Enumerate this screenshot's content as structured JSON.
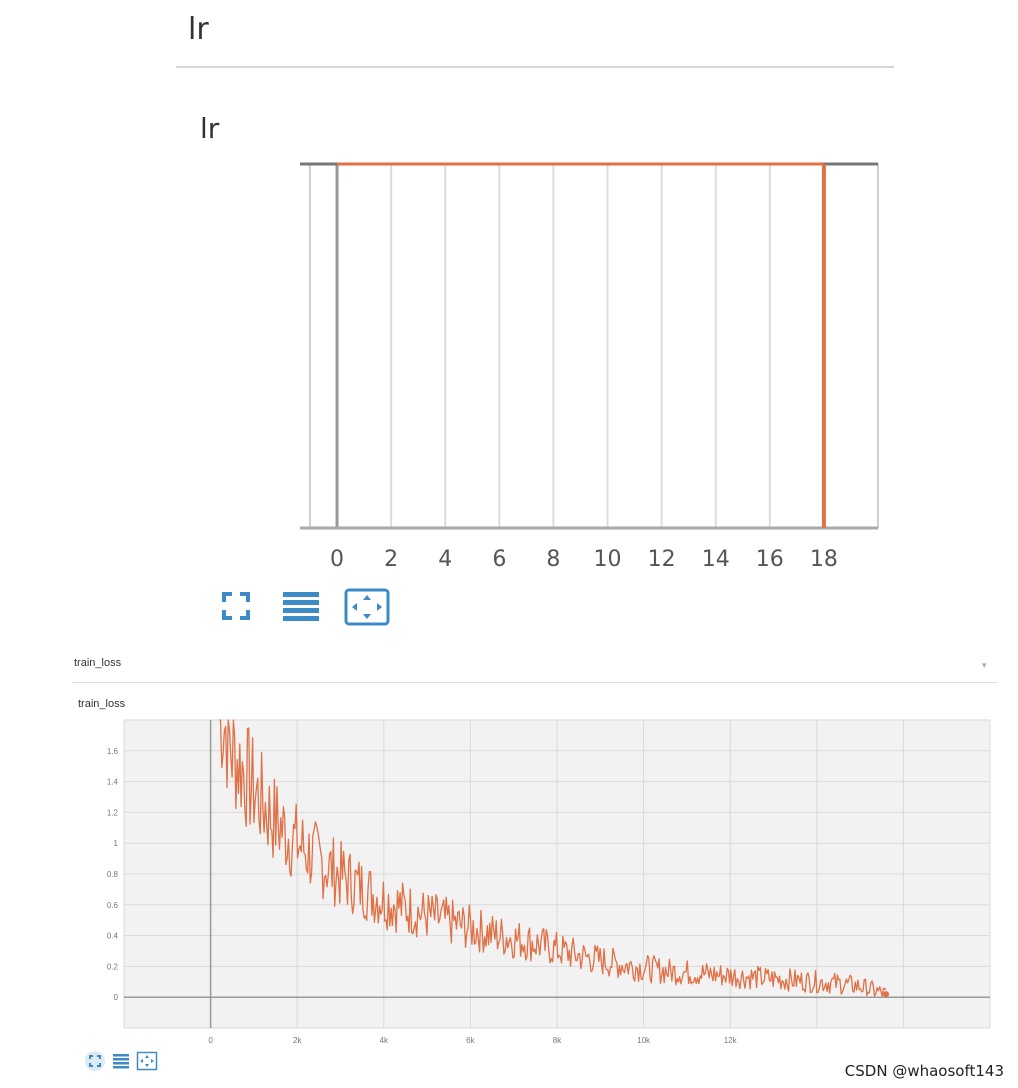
{
  "section1": {
    "header_title": "lr",
    "card_title": "lr"
  },
  "section2": {
    "header_title": "train_loss",
    "card_title": "train_loss",
    "collapse_glyph": "▾"
  },
  "toolbar_icons": [
    "expand-icon",
    "data-table-icon",
    "fit-domain-icon"
  ],
  "watermark": "CSDN @whaosoft143",
  "colors": {
    "series": "#e07045",
    "zero_line": "#999999",
    "grid": "#d9d9d9",
    "toolbar_icon": "#3d8bc6",
    "plot_bg": "#f2f2f2"
  },
  "chart_data": [
    {
      "type": "line",
      "title": "lr",
      "x": {
        "ticks": [
          0,
          2,
          4,
          6,
          8,
          10,
          12,
          14,
          16,
          18
        ],
        "range": [
          -1,
          20
        ]
      },
      "y": {
        "ticks": [],
        "range": [
          0,
          1
        ]
      },
      "series": [
        {
          "x": [
            0,
            18
          ],
          "y": [
            1,
            1
          ]
        }
      ],
      "grid": true,
      "legend": "none"
    },
    {
      "type": "line",
      "title": "train_loss",
      "x": {
        "tick_labels": [
          "0",
          "2k",
          "4k",
          "6k",
          "8k",
          "10k",
          "12k"
        ],
        "tick_values": [
          0,
          2000,
          4000,
          6000,
          8000,
          10000,
          12000
        ],
        "range": [
          -2000,
          18000
        ]
      },
      "y": {
        "tick_labels": [
          "0",
          "0.2",
          "0.4",
          "0.6",
          "0.8",
          "1",
          "1.2",
          "1.4",
          "1.6"
        ],
        "tick_values": [
          0,
          0.2,
          0.4,
          0.6,
          0.8,
          1,
          1.2,
          1.4,
          1.6
        ],
        "range": [
          -0.2,
          1.8
        ]
      },
      "series": [
        {
          "x": [
            200,
            500,
            800,
            1100,
            1400,
            1700,
            2000,
            2300,
            2600,
            2900,
            3200,
            3500,
            3800,
            4200,
            4600,
            5000,
            5500,
            6000,
            6500,
            7000,
            7500,
            8000,
            8500,
            9000,
            9500,
            10000,
            10500,
            11000,
            11500,
            12000,
            12500,
            13000,
            13500,
            14000,
            14500,
            15000,
            15600
          ],
          "y": [
            1.9,
            1.6,
            1.45,
            1.3,
            1.18,
            1.08,
            1.0,
            0.93,
            0.87,
            0.81,
            0.76,
            0.71,
            0.66,
            0.61,
            0.57,
            0.53,
            0.49,
            0.45,
            0.41,
            0.38,
            0.35,
            0.31,
            0.27,
            0.24,
            0.21,
            0.19,
            0.17,
            0.16,
            0.15,
            0.14,
            0.13,
            0.12,
            0.11,
            0.1,
            0.09,
            0.07,
            0.02
          ]
        }
      ],
      "grid": true,
      "legend": "none"
    }
  ]
}
